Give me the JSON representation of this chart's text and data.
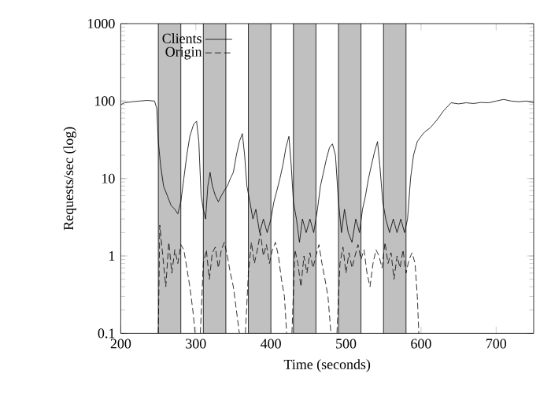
{
  "chart_data": {
    "type": "line",
    "xlabel": "Time (seconds)",
    "ylabel": "Requests/sec (log)",
    "xlim": [
      200,
      750
    ],
    "xticks": [
      200,
      300,
      400,
      500,
      600,
      700
    ],
    "ylim": [
      0.1,
      1000
    ],
    "yticks": [
      0.1,
      1,
      10,
      100,
      1000
    ],
    "log": "y",
    "legend": "top left",
    "marker": "none",
    "bands": [
      {
        "axis": "x",
        "from": 250,
        "to": 280,
        "color": "#c0c0c0"
      },
      {
        "axis": "x",
        "from": 310,
        "to": 340,
        "color": "#c0c0c0"
      },
      {
        "axis": "x",
        "from": 370,
        "to": 400,
        "color": "#c0c0c0"
      },
      {
        "axis": "x",
        "from": 430,
        "to": 460,
        "color": "#c0c0c0"
      },
      {
        "axis": "x",
        "from": 490,
        "to": 520,
        "color": "#c0c0c0"
      },
      {
        "axis": "x",
        "from": 550,
        "to": 580,
        "color": "#c0c0c0"
      }
    ],
    "series": [
      {
        "name": "Clients",
        "color": "#000000",
        "line_style": "solid",
        "x": [
          200,
          205,
          215,
          225,
          235,
          245,
          248,
          250,
          253,
          257,
          262,
          267,
          272,
          276,
          280,
          284,
          288,
          292,
          297,
          301,
          304,
          307,
          310,
          313,
          316,
          319,
          322,
          326,
          330,
          334,
          338,
          342,
          346,
          350,
          354,
          358,
          362,
          365,
          368,
          372,
          376,
          380,
          385,
          390,
          395,
          400,
          404,
          408,
          412,
          416,
          420,
          424,
          427,
          430,
          434,
          438,
          442,
          447,
          452,
          457,
          462,
          466,
          470,
          474,
          478,
          482,
          486,
          490,
          494,
          498,
          503,
          508,
          513,
          518,
          522,
          526,
          530,
          534,
          538,
          542,
          545,
          549,
          553,
          558,
          563,
          568,
          573,
          578,
          582,
          586,
          590,
          595,
          600,
          605,
          612,
          620,
          630,
          640,
          650,
          660,
          670,
          680,
          690,
          700,
          710,
          720,
          730,
          740,
          750
        ],
        "values": [
          90,
          95,
          98,
          100,
          102,
          100,
          80,
          30,
          15,
          8,
          6,
          4.5,
          4,
          3.5,
          5,
          10,
          20,
          35,
          50,
          55,
          30,
          6,
          4,
          3,
          8,
          12,
          8,
          6,
          5,
          6,
          7,
          8,
          10,
          12,
          20,
          30,
          38,
          20,
          8,
          5,
          3,
          4,
          2,
          3,
          2,
          3,
          5,
          7,
          10,
          15,
          25,
          35,
          15,
          5,
          3,
          1.5,
          3,
          2,
          3,
          2,
          4,
          8,
          12,
          18,
          25,
          28,
          20,
          5,
          2,
          4,
          2,
          1.5,
          3,
          2,
          4,
          6,
          10,
          15,
          22,
          30,
          15,
          5,
          3,
          2,
          3,
          2,
          3,
          2,
          3,
          10,
          20,
          30,
          35,
          40,
          45,
          55,
          75,
          95,
          92,
          95,
          93,
          96,
          95,
          100,
          105,
          100,
          98,
          100,
          95
        ]
      },
      {
        "name": "Origin",
        "color": "#000000",
        "line_style": "dashed",
        "x": [
          250,
          252,
          256,
          260,
          264,
          268,
          272,
          276,
          280,
          284,
          288,
          292,
          296,
          299,
          302,
          306,
          310,
          314,
          318,
          322,
          326,
          330,
          334,
          338,
          342,
          346,
          350,
          354,
          358,
          362,
          366,
          370,
          374,
          378,
          382,
          386,
          390,
          394,
          398,
          402,
          406,
          410,
          414,
          418,
          421,
          424,
          428,
          432,
          436,
          440,
          444,
          448,
          452,
          456,
          460,
          464,
          468,
          472,
          476,
          480,
          484,
          488,
          492,
          496,
          500,
          504,
          508,
          512,
          516,
          520,
          524,
          528,
          532,
          536,
          540,
          544,
          548,
          552,
          556,
          560,
          564,
          568,
          572,
          576,
          580,
          584,
          588,
          592,
          595,
          597
        ],
        "values": [
          0.1,
          2.5,
          1,
          0.4,
          1.5,
          0.6,
          1.2,
          0.8,
          1.4,
          1.2,
          0.7,
          0.4,
          0.2,
          0.1,
          null,
          0.1,
          0.8,
          1.2,
          0.5,
          1.1,
          1.3,
          0.7,
          1.2,
          1.5,
          1.0,
          0.6,
          0.4,
          0.2,
          0.1,
          null,
          0.1,
          0.6,
          1.5,
          0.8,
          1.2,
          2,
          1,
          1.4,
          0.8,
          1.2,
          1.5,
          1.0,
          0.5,
          0.3,
          0.1,
          null,
          0.1,
          1.2,
          0.8,
          0.4,
          1.0,
          0.6,
          1.1,
          0.7,
          1.0,
          1.4,
          0.8,
          0.5,
          0.3,
          0.1,
          null,
          0.1,
          0.8,
          1.3,
          0.6,
          1.1,
          0.7,
          1.0,
          1.4,
          0.9,
          1.2,
          0.6,
          0.4,
          0.8,
          1.2,
          1.0,
          0.7,
          1.5,
          0.8,
          1.1,
          0.5,
          1.0,
          0.7,
          1.2,
          0.6,
          0.9,
          1.1,
          0.8,
          0.3,
          0.1
        ]
      }
    ]
  }
}
